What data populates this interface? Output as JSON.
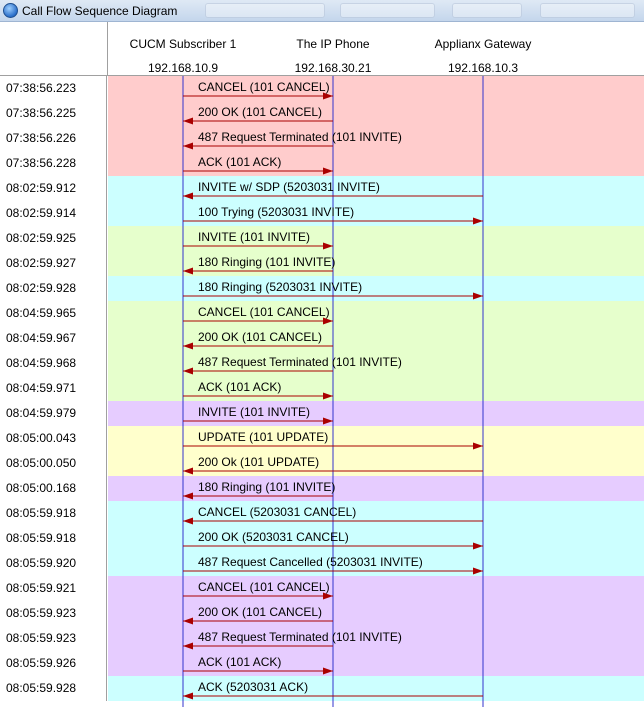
{
  "window": {
    "title": "Call Flow Sequence Diagram"
  },
  "participants": [
    {
      "name": "CUCM Subscriber 1",
      "ip": "192.168.10.9"
    },
    {
      "name": "The IP Phone",
      "ip": "192.168.30.21"
    },
    {
      "name": "Applianx Gateway",
      "ip": "192.168.10.3"
    }
  ],
  "colors": {
    "red": "#ffcccc",
    "cyan": "#ccffff",
    "green": "#e6ffcc",
    "purple": "#e6ccff",
    "yellow": "#ffffcc",
    "lifeline": "#3333cc",
    "arrow": "#aa0000"
  },
  "messages": [
    {
      "time": "07:38:56.223",
      "label": "CANCEL (101 CANCEL)",
      "from": 0,
      "to": 1,
      "band": "red"
    },
    {
      "time": "07:38:56.225",
      "label": "200 OK (101 CANCEL)",
      "from": 1,
      "to": 0,
      "band": "red"
    },
    {
      "time": "07:38:56.226",
      "label": "487 Request Terminated (101 INVITE)",
      "from": 1,
      "to": 0,
      "band": "red"
    },
    {
      "time": "07:38:56.228",
      "label": "ACK (101 ACK)",
      "from": 0,
      "to": 1,
      "band": "red"
    },
    {
      "time": "08:02:59.912",
      "label": "INVITE w/ SDP (5203031 INVITE)",
      "from": 2,
      "to": 0,
      "band": "cyan"
    },
    {
      "time": "08:02:59.914",
      "label": "100 Trying (5203031 INVITE)",
      "from": 0,
      "to": 2,
      "band": "cyan"
    },
    {
      "time": "08:02:59.925",
      "label": "INVITE (101 INVITE)",
      "from": 0,
      "to": 1,
      "band": "green"
    },
    {
      "time": "08:02:59.927",
      "label": "180 Ringing (101 INVITE)",
      "from": 1,
      "to": 0,
      "band": "green"
    },
    {
      "time": "08:02:59.928",
      "label": "180 Ringing (5203031 INVITE)",
      "from": 0,
      "to": 2,
      "band": "cyan"
    },
    {
      "time": "08:04:59.965",
      "label": "CANCEL (101 CANCEL)",
      "from": 0,
      "to": 1,
      "band": "green"
    },
    {
      "time": "08:04:59.967",
      "label": "200 OK (101 CANCEL)",
      "from": 1,
      "to": 0,
      "band": "green"
    },
    {
      "time": "08:04:59.968",
      "label": "487 Request Terminated (101 INVITE)",
      "from": 1,
      "to": 0,
      "band": "green"
    },
    {
      "time": "08:04:59.971",
      "label": "ACK (101 ACK)",
      "from": 0,
      "to": 1,
      "band": "green"
    },
    {
      "time": "08:04:59.979",
      "label": "INVITE (101 INVITE)",
      "from": 0,
      "to": 1,
      "band": "purple"
    },
    {
      "time": "08:05:00.043",
      "label": "UPDATE (101 UPDATE)",
      "from": 0,
      "to": 2,
      "band": "yellow"
    },
    {
      "time": "08:05:00.050",
      "label": "200 Ok (101 UPDATE)",
      "from": 2,
      "to": 0,
      "band": "yellow"
    },
    {
      "time": "08:05:00.168",
      "label": "180 Ringing (101 INVITE)",
      "from": 1,
      "to": 0,
      "band": "purple"
    },
    {
      "time": "08:05:59.918",
      "label": "CANCEL (5203031 CANCEL)",
      "from": 2,
      "to": 0,
      "band": "cyan"
    },
    {
      "time": "08:05:59.918",
      "label": "200 OK (5203031 CANCEL)",
      "from": 0,
      "to": 2,
      "band": "cyan"
    },
    {
      "time": "08:05:59.920",
      "label": "487 Request Cancelled (5203031 INVITE)",
      "from": 0,
      "to": 2,
      "band": "cyan"
    },
    {
      "time": "08:05:59.921",
      "label": "CANCEL (101 CANCEL)",
      "from": 0,
      "to": 1,
      "band": "purple"
    },
    {
      "time": "08:05:59.923",
      "label": "200 OK (101 CANCEL)",
      "from": 1,
      "to": 0,
      "band": "purple"
    },
    {
      "time": "08:05:59.923",
      "label": "487 Request Terminated (101 INVITE)",
      "from": 1,
      "to": 0,
      "band": "purple"
    },
    {
      "time": "08:05:59.926",
      "label": "ACK (101 ACK)",
      "from": 0,
      "to": 1,
      "band": "purple"
    },
    {
      "time": "08:05:59.928",
      "label": "ACK (5203031 ACK)",
      "from": 2,
      "to": 0,
      "band": "cyan"
    }
  ]
}
